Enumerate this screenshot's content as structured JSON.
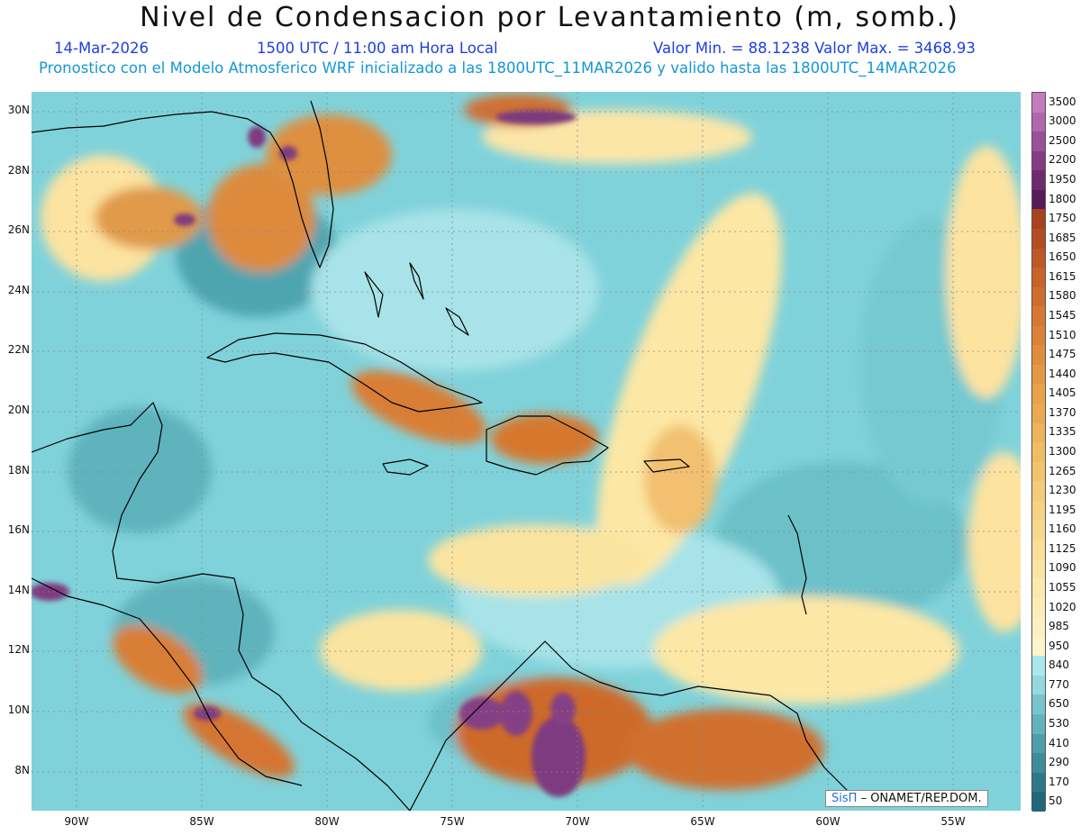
{
  "header": {
    "title": "Nivel de Condensacion por Levantamiento (m, somb.)",
    "date": "14-Mar-2026",
    "time": "1500 UTC / 11:00 am Hora Local",
    "min_max": "Valor Min. = 88.1238   Valor Max. = 3468.93",
    "forecast": "Pronostico con el Modelo Atmosferico WRF inicializado a las 1800UTC_11MAR2026 y valido hasta las  1800UTC_14MAR2026"
  },
  "axes": {
    "lat_labels": [
      "30N",
      "28N",
      "26N",
      "24N",
      "22N",
      "20N",
      "18N",
      "16N",
      "14N",
      "12N",
      "10N",
      "8N"
    ],
    "lon_labels": [
      "90W",
      "85W",
      "80W",
      "75W",
      "70W",
      "65W",
      "60W",
      "55W"
    ]
  },
  "colorbar": {
    "labels": [
      "3500",
      "3000",
      "2500",
      "2200",
      "1950",
      "1800",
      "1750",
      "1685",
      "1650",
      "1615",
      "1580",
      "1545",
      "1510",
      "1475",
      "1440",
      "1405",
      "1370",
      "1335",
      "1300",
      "1265",
      "1230",
      "1195",
      "1160",
      "1125",
      "1090",
      "1055",
      "1020",
      "985",
      "950",
      "840",
      "770",
      "650",
      "530",
      "410",
      "290",
      "170",
      "50"
    ],
    "colors": [
      "#c47bbf",
      "#b067ad",
      "#9a4f99",
      "#853c85",
      "#6e2a6f",
      "#571b58",
      "#a8421f",
      "#b54d22",
      "#c05826",
      "#c96329",
      "#d06d2d",
      "#d77832",
      "#dc8237",
      "#e08c3d",
      "#e59843",
      "#e9a24a",
      "#eba952",
      "#eeb35b",
      "#f0bd64",
      "#f2c46e",
      "#f4cb78",
      "#f6d282",
      "#f7d98d",
      "#f9df98",
      "#fae4a2",
      "#fbe9ad",
      "#fcedb7",
      "#fdf1c2",
      "#fef5cd",
      "#a9e8ec",
      "#93d9df",
      "#79c5cd",
      "#62b3bc",
      "#4e9fab",
      "#3e8c9a",
      "#2e7989",
      "#21677a"
    ]
  },
  "credit": {
    "brand": "SisΠ",
    "text": "– ONAMET/REP.DOM."
  },
  "colors": {
    "title_blue": "#1f3fe0",
    "subtitle_cyan": "#1597d6",
    "map_base": "#7fd5dc",
    "coastline": "#000000"
  }
}
